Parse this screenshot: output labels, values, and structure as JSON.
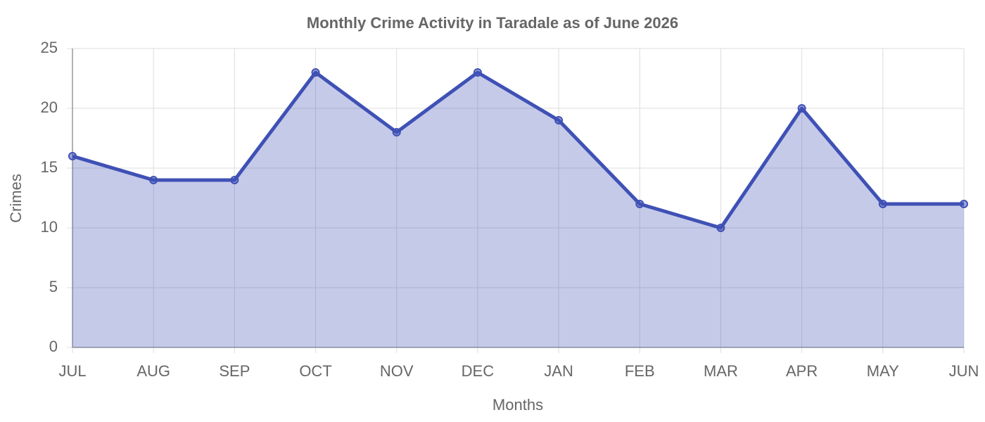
{
  "chart_data": {
    "type": "line",
    "title": "Monthly Crime Activity in Taradale as of June 2026",
    "x_label": "Months",
    "y_label": "Crimes",
    "categories": [
      "JUL",
      "AUG",
      "SEP",
      "OCT",
      "NOV",
      "DEC",
      "JAN",
      "FEB",
      "MAR",
      "APR",
      "MAY",
      "JUN"
    ],
    "values": [
      16,
      14,
      14,
      23,
      18,
      23,
      19,
      12,
      10,
      20,
      12,
      12
    ],
    "color": "#3f51b5",
    "fill": true,
    "ylim": [
      0,
      25
    ],
    "yticks": [
      0,
      5,
      10,
      15,
      20,
      25
    ],
    "grid": true
  }
}
